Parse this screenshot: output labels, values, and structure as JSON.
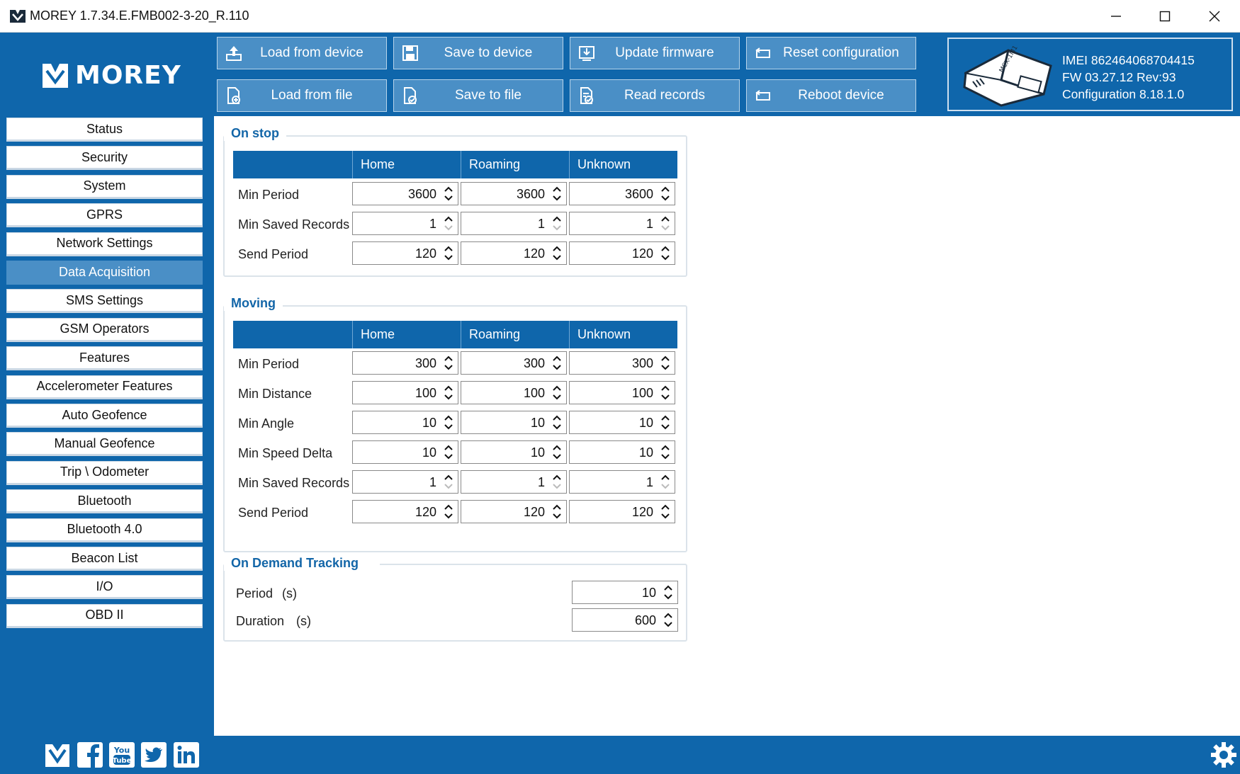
{
  "window": {
    "title": "MOREY 1.7.34.E.FMB002-3-20_R.110"
  },
  "brand": {
    "logo_text": "MOREY"
  },
  "toolbar": {
    "load_from_device": "Load from device",
    "save_to_device": "Save to device",
    "update_firmware": "Update firmware",
    "reset_configuration": "Reset configuration",
    "load_from_file": "Load from file",
    "save_to_file": "Save to file",
    "read_records": "Read records",
    "reboot_device": "Reboot device"
  },
  "device": {
    "imei": "IMEI  862464068704415",
    "fw": "FW  03.27.12 Rev:93",
    "configuration": "Configuration  8.18.1.0",
    "device_label": "MCX-1M1"
  },
  "sidebar": {
    "items": [
      {
        "label": "Status"
      },
      {
        "label": "Security"
      },
      {
        "label": "System"
      },
      {
        "label": "GPRS"
      },
      {
        "label": "Network Settings"
      },
      {
        "label": "Data Acquisition",
        "active": true
      },
      {
        "label": "SMS Settings"
      },
      {
        "label": "GSM Operators"
      },
      {
        "label": "Features"
      },
      {
        "label": "Accelerometer Features"
      },
      {
        "label": "Auto Geofence"
      },
      {
        "label": "Manual Geofence"
      },
      {
        "label": "Trip \\ Odometer"
      },
      {
        "label": "Bluetooth"
      },
      {
        "label": "Bluetooth 4.0"
      },
      {
        "label": "Beacon List"
      },
      {
        "label": "I/O"
      },
      {
        "label": "OBD II"
      }
    ]
  },
  "columns": [
    "Home",
    "Roaming",
    "Unknown"
  ],
  "on_stop": {
    "title": "On stop",
    "rows": [
      {
        "label": "Min Period",
        "values": [
          "3600",
          "3600",
          "3600"
        ]
      },
      {
        "label": "Min Saved Records",
        "values": [
          "1",
          "1",
          "1"
        ]
      },
      {
        "label": "Send Period",
        "values": [
          "120",
          "120",
          "120"
        ]
      }
    ]
  },
  "moving": {
    "title": "Moving",
    "rows": [
      {
        "label": "Min Period",
        "values": [
          "300",
          "300",
          "300"
        ]
      },
      {
        "label": "Min Distance",
        "values": [
          "100",
          "100",
          "100"
        ]
      },
      {
        "label": "Min Angle",
        "values": [
          "10",
          "10",
          "10"
        ]
      },
      {
        "label": "Min Speed Delta",
        "values": [
          "10",
          "10",
          "10"
        ]
      },
      {
        "label": "Min Saved Records",
        "values": [
          "1",
          "1",
          "1"
        ]
      },
      {
        "label": "Send Period",
        "values": [
          "120",
          "120",
          "120"
        ]
      }
    ]
  },
  "on_demand": {
    "title": "On Demand Tracking",
    "period_label": "Period",
    "period_unit": "(s)",
    "period_value": "10",
    "duration_label": "Duration",
    "duration_unit": "(s)",
    "duration_value": "600"
  },
  "colors": {
    "brand_blue": "#0f66ab",
    "button_blue": "#4a8fc6",
    "group_title": "#1366a8"
  },
  "icons": [
    "app-logo-icon",
    "minimize-icon",
    "maximize-icon",
    "close-icon",
    "upload-icon",
    "floppy-icon",
    "firmware-icon",
    "reset-icon",
    "file-add-icon",
    "file-check-icon",
    "records-icon",
    "reboot-icon",
    "facebook-icon",
    "youtube-icon",
    "twitter-icon",
    "linkedin-icon",
    "settings-gear-icon"
  ]
}
